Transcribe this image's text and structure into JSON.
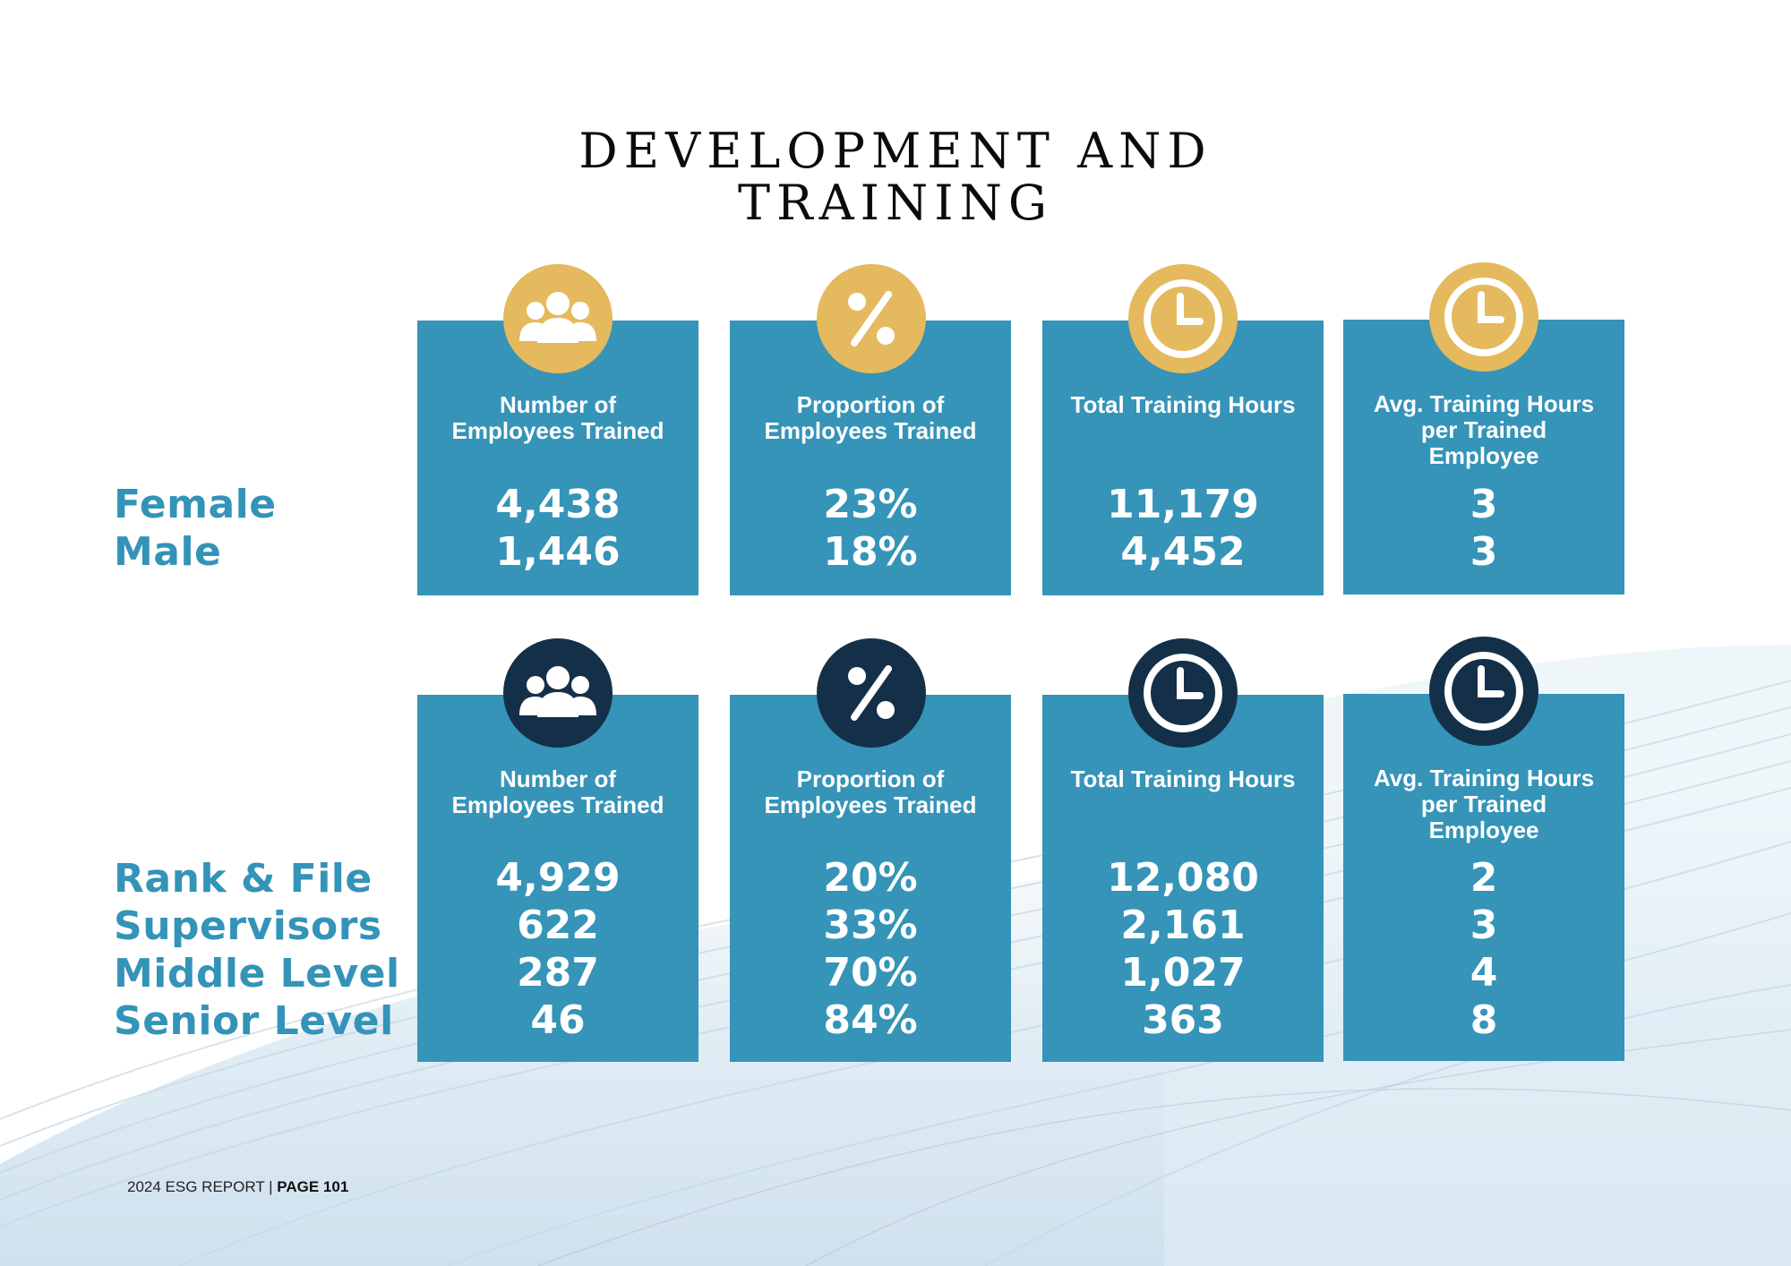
{
  "title": {
    "line1": "DEVELOPMENT AND",
    "line2": "TRAINING"
  },
  "headers": {
    "employees_trained_1": "Number of",
    "employees_trained_2": "Employees Trained",
    "proportion_1": "Proportion of",
    "proportion_2": "Employees Trained",
    "total_hours": "Total Training Hours",
    "avg_hours_1": "Avg. Training Hours",
    "avg_hours_2": "per Trained",
    "avg_hours_3": "Employee"
  },
  "gender": {
    "labels": [
      "Female",
      "Male"
    ],
    "employees_trained": [
      "4,438",
      "1,446"
    ],
    "proportion": [
      "23%",
      "18%"
    ],
    "total_hours": [
      "11,179",
      "4,452"
    ],
    "avg_hours": [
      "3",
      "3"
    ]
  },
  "level": {
    "labels": [
      "Rank & File",
      "Supervisors",
      "Middle Level",
      "Senior Level"
    ],
    "employees_trained": [
      "4,929",
      "622",
      "287",
      "46"
    ],
    "proportion": [
      "20%",
      "33%",
      "70%",
      "84%"
    ],
    "total_hours": [
      "12,080",
      "2,161",
      "1,027",
      "363"
    ],
    "avg_hours": [
      "2",
      "3",
      "4",
      "8"
    ]
  },
  "icons": {
    "people": "people-group-icon",
    "percent": "percent-icon",
    "clock": "clock-icon"
  },
  "colors": {
    "card": "#3594b8",
    "label": "#3493b8",
    "gold": "#e5b95d",
    "navy": "#143049"
  },
  "footer": {
    "report": "2024 ESG REPORT | ",
    "page": "PAGE 101"
  }
}
